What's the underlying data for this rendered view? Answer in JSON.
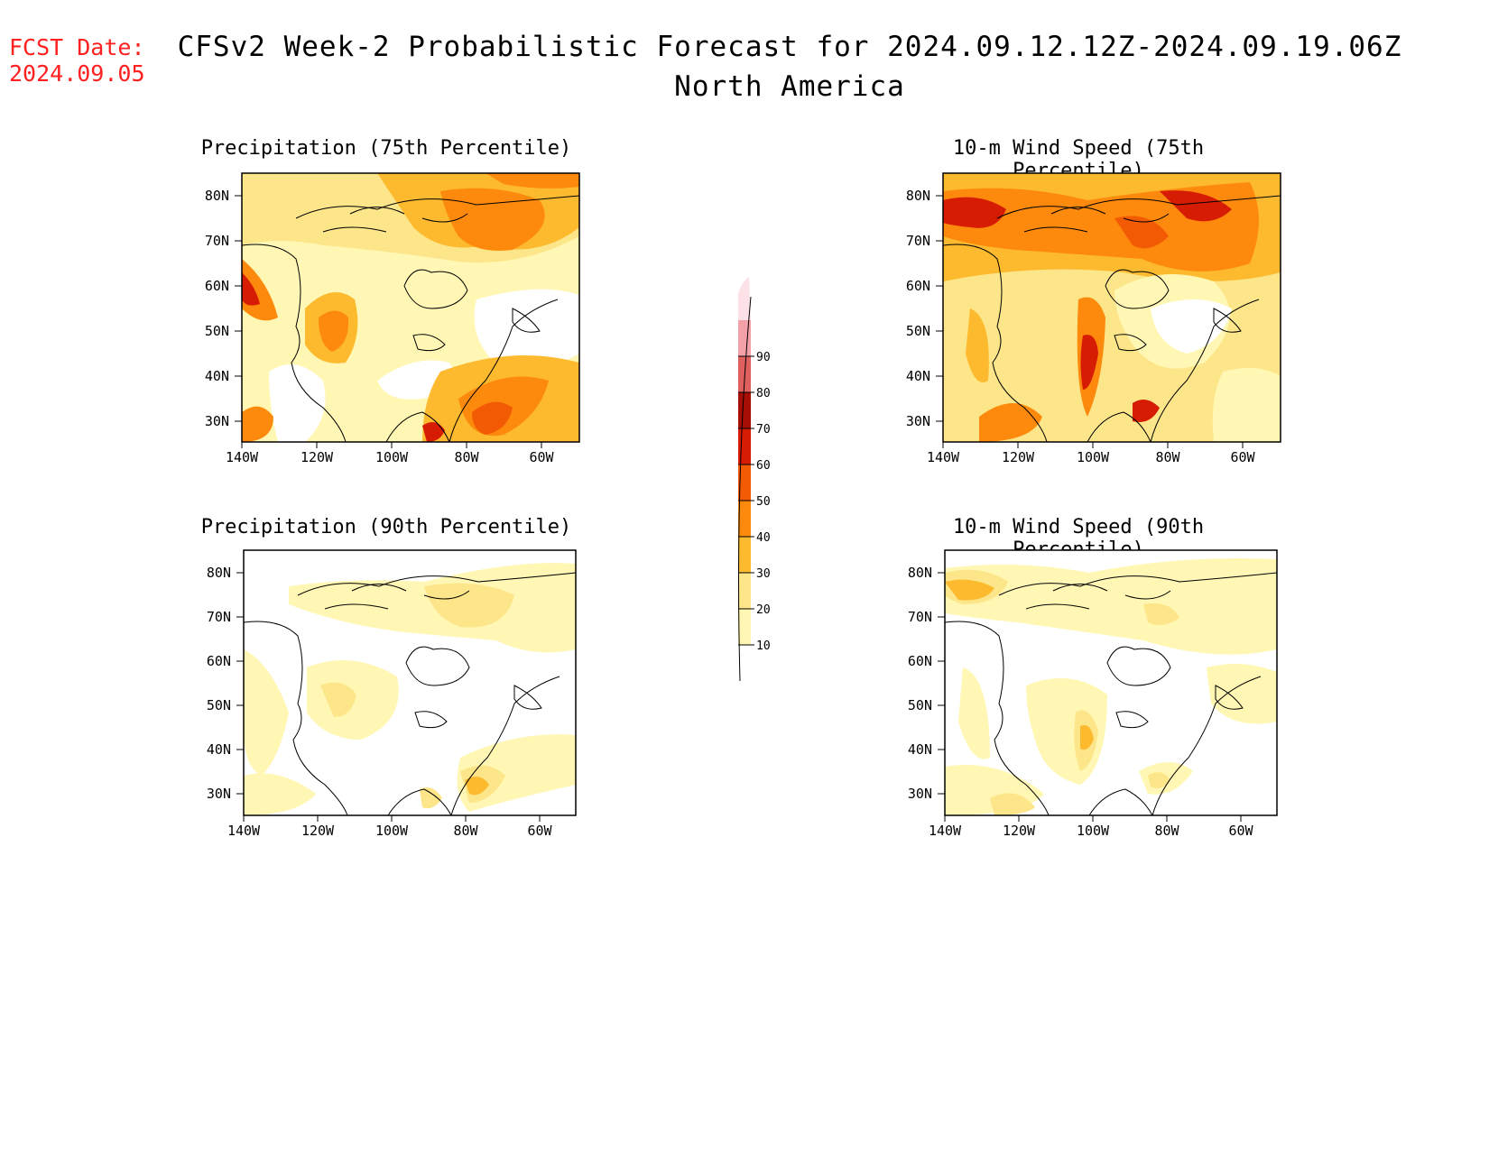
{
  "header": {
    "fcst_label": "FCST Date:",
    "fcst_date": "2024.09.05",
    "title": "CFSv2 Week-2 Probabilistic Forecast for 2024.09.12.12Z-2024.09.19.06Z",
    "subtitle": "North America"
  },
  "panels": [
    {
      "title": "Precipitation (75th Percentile)"
    },
    {
      "title": "10-m Wind Speed (75th Percentile)"
    },
    {
      "title": "Precipitation (90th Percentile)"
    },
    {
      "title": "10-m Wind Speed (90th Percentile)"
    }
  ],
  "axes": {
    "lat_labels": [
      "80N",
      "70N",
      "60N",
      "50N",
      "40N",
      "30N"
    ],
    "lon_labels": [
      "140W",
      "120W",
      "100W",
      "80W",
      "60W"
    ]
  },
  "colorbar": {
    "levels": [
      "10",
      "20",
      "30",
      "40",
      "50",
      "60",
      "70",
      "80",
      "90"
    ],
    "colors": [
      "#fff7b3",
      "#fde68a",
      "#fdba2e",
      "#fd8a0c",
      "#f25a04",
      "#d71c04",
      "#a50f05",
      "#e06060",
      "#f4a0a8",
      "#fce2e6"
    ]
  }
}
